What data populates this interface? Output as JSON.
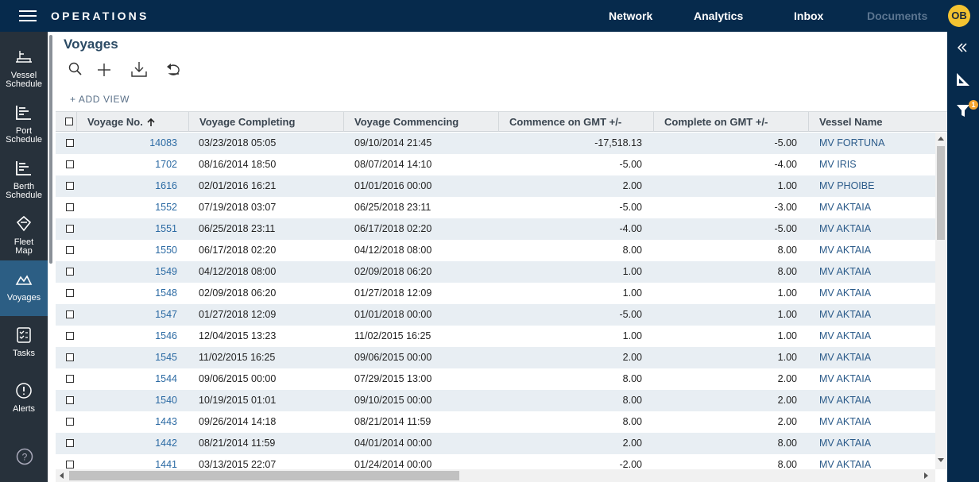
{
  "header": {
    "app_title": "OPERATIONS",
    "nav": [
      "Network",
      "Analytics",
      "Inbox",
      "Documents"
    ],
    "avatar": "OB"
  },
  "sidebar": {
    "items": [
      "Vessel Schedule",
      "Port Schedule",
      "Berth Schedule",
      "Fleet Map",
      "Voyages",
      "Tasks",
      "Alerts"
    ]
  },
  "right_panel": {
    "filter_badge": "1"
  },
  "page": {
    "title": "Voyages",
    "add_view": "+ ADD VIEW"
  },
  "table": {
    "columns": [
      "Voyage No.",
      "Voyage Completing",
      "Voyage Commencing",
      "Commence on GMT +/-",
      "Complete on GMT +/-",
      "Vessel Name"
    ],
    "rows": [
      [
        "14083",
        "03/23/2018 05:05",
        "09/10/2014 21:45",
        "-17,518.13",
        "-5.00",
        "MV FORTUNA"
      ],
      [
        "1702",
        "08/16/2014 18:50",
        "08/07/2014 14:10",
        "-5.00",
        "-4.00",
        "MV IRIS"
      ],
      [
        "1616",
        "02/01/2016 16:21",
        "01/01/2016 00:00",
        "2.00",
        "1.00",
        "MV PHOIBE"
      ],
      [
        "1552",
        "07/19/2018 03:07",
        "06/25/2018 23:11",
        "-5.00",
        "-3.00",
        "MV AKTAIA"
      ],
      [
        "1551",
        "06/25/2018 23:11",
        "06/17/2018 02:20",
        "-4.00",
        "-5.00",
        "MV AKTAIA"
      ],
      [
        "1550",
        "06/17/2018 02:20",
        "04/12/2018 08:00",
        "8.00",
        "8.00",
        "MV AKTAIA"
      ],
      [
        "1549",
        "04/12/2018 08:00",
        "02/09/2018 06:20",
        "1.00",
        "8.00",
        "MV AKTAIA"
      ],
      [
        "1548",
        "02/09/2018 06:20",
        "01/27/2018 12:09",
        "1.00",
        "1.00",
        "MV AKTAIA"
      ],
      [
        "1547",
        "01/27/2018 12:09",
        "01/01/2018 00:00",
        "-5.00",
        "1.00",
        "MV AKTAIA"
      ],
      [
        "1546",
        "12/04/2015 13:23",
        "11/02/2015 16:25",
        "1.00",
        "1.00",
        "MV AKTAIA"
      ],
      [
        "1545",
        "11/02/2015 16:25",
        "09/06/2015 00:00",
        "2.00",
        "1.00",
        "MV AKTAIA"
      ],
      [
        "1544",
        "09/06/2015 00:00",
        "07/29/2015 13:00",
        "8.00",
        "2.00",
        "MV AKTAIA"
      ],
      [
        "1540",
        "10/19/2015 01:01",
        "09/10/2015 00:00",
        "8.00",
        "2.00",
        "MV AKTAIA"
      ],
      [
        "1443",
        "09/26/2014 14:18",
        "08/21/2014 11:59",
        "8.00",
        "2.00",
        "MV AKTAIA"
      ],
      [
        "1442",
        "08/21/2014 11:59",
        "04/01/2014 00:00",
        "2.00",
        "8.00",
        "MV AKTAIA"
      ],
      [
        "1441",
        "03/13/2015 22:07",
        "01/24/2014 00:00",
        "-2.00",
        "8.00",
        "MV AKTAIA"
      ]
    ]
  }
}
